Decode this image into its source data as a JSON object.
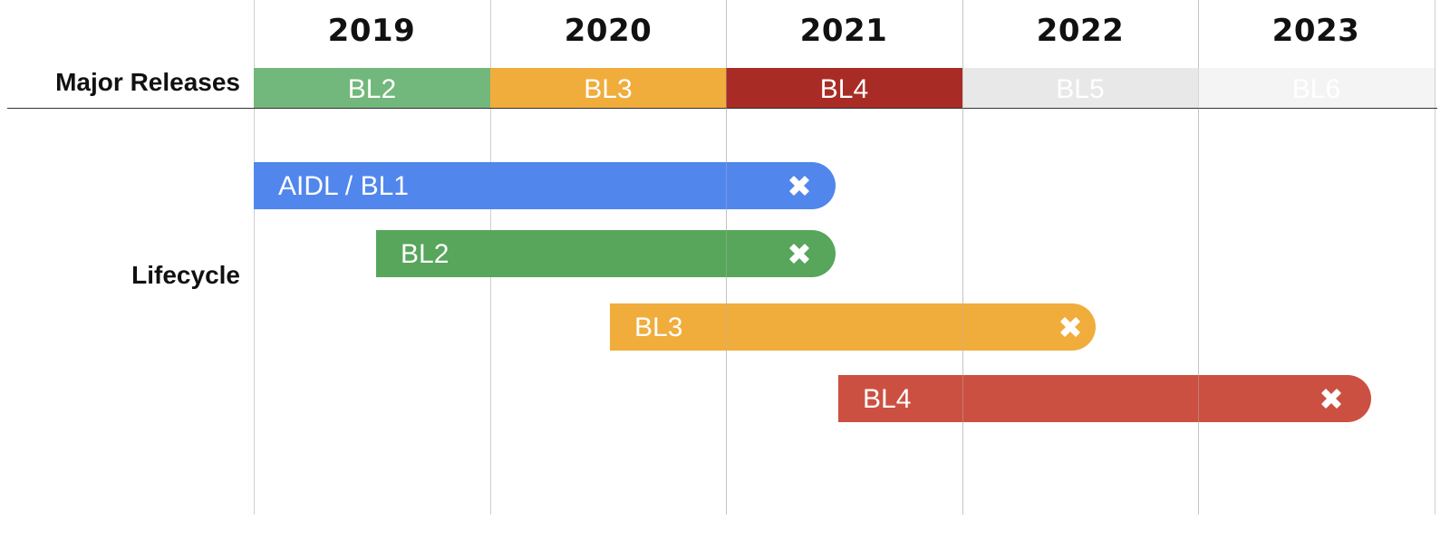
{
  "years": [
    "2019",
    "2020",
    "2021",
    "2022",
    "2023"
  ],
  "row_labels": {
    "major_releases": "Major Releases",
    "lifecycle": "Lifecycle"
  },
  "major_releases": [
    {
      "label": "BL2",
      "color": "#72b77b",
      "text_color": "#ffffff"
    },
    {
      "label": "BL3",
      "color": "#f0ad3c",
      "text_color": "#ffffff"
    },
    {
      "label": "BL4",
      "color": "#a82c25",
      "text_color": "#ffffff"
    },
    {
      "label": "BL5",
      "color": "#e8e8e8",
      "text_color": "#ffffff"
    },
    {
      "label": "BL6",
      "color": "#f4f4f4",
      "text_color": "#ffffff"
    }
  ],
  "lifecycle": [
    {
      "label": "AIDL / BL1",
      "color": "#5186ec",
      "end_icon": "close-x-icon"
    },
    {
      "label": "BL2",
      "color": "#58a55c",
      "end_icon": "close-x-icon"
    },
    {
      "label": "BL3",
      "color": "#f0ad3c",
      "end_icon": "close-x-icon"
    },
    {
      "label": "BL4",
      "color": "#cc5041",
      "end_icon": "close-x-icon"
    }
  ]
}
